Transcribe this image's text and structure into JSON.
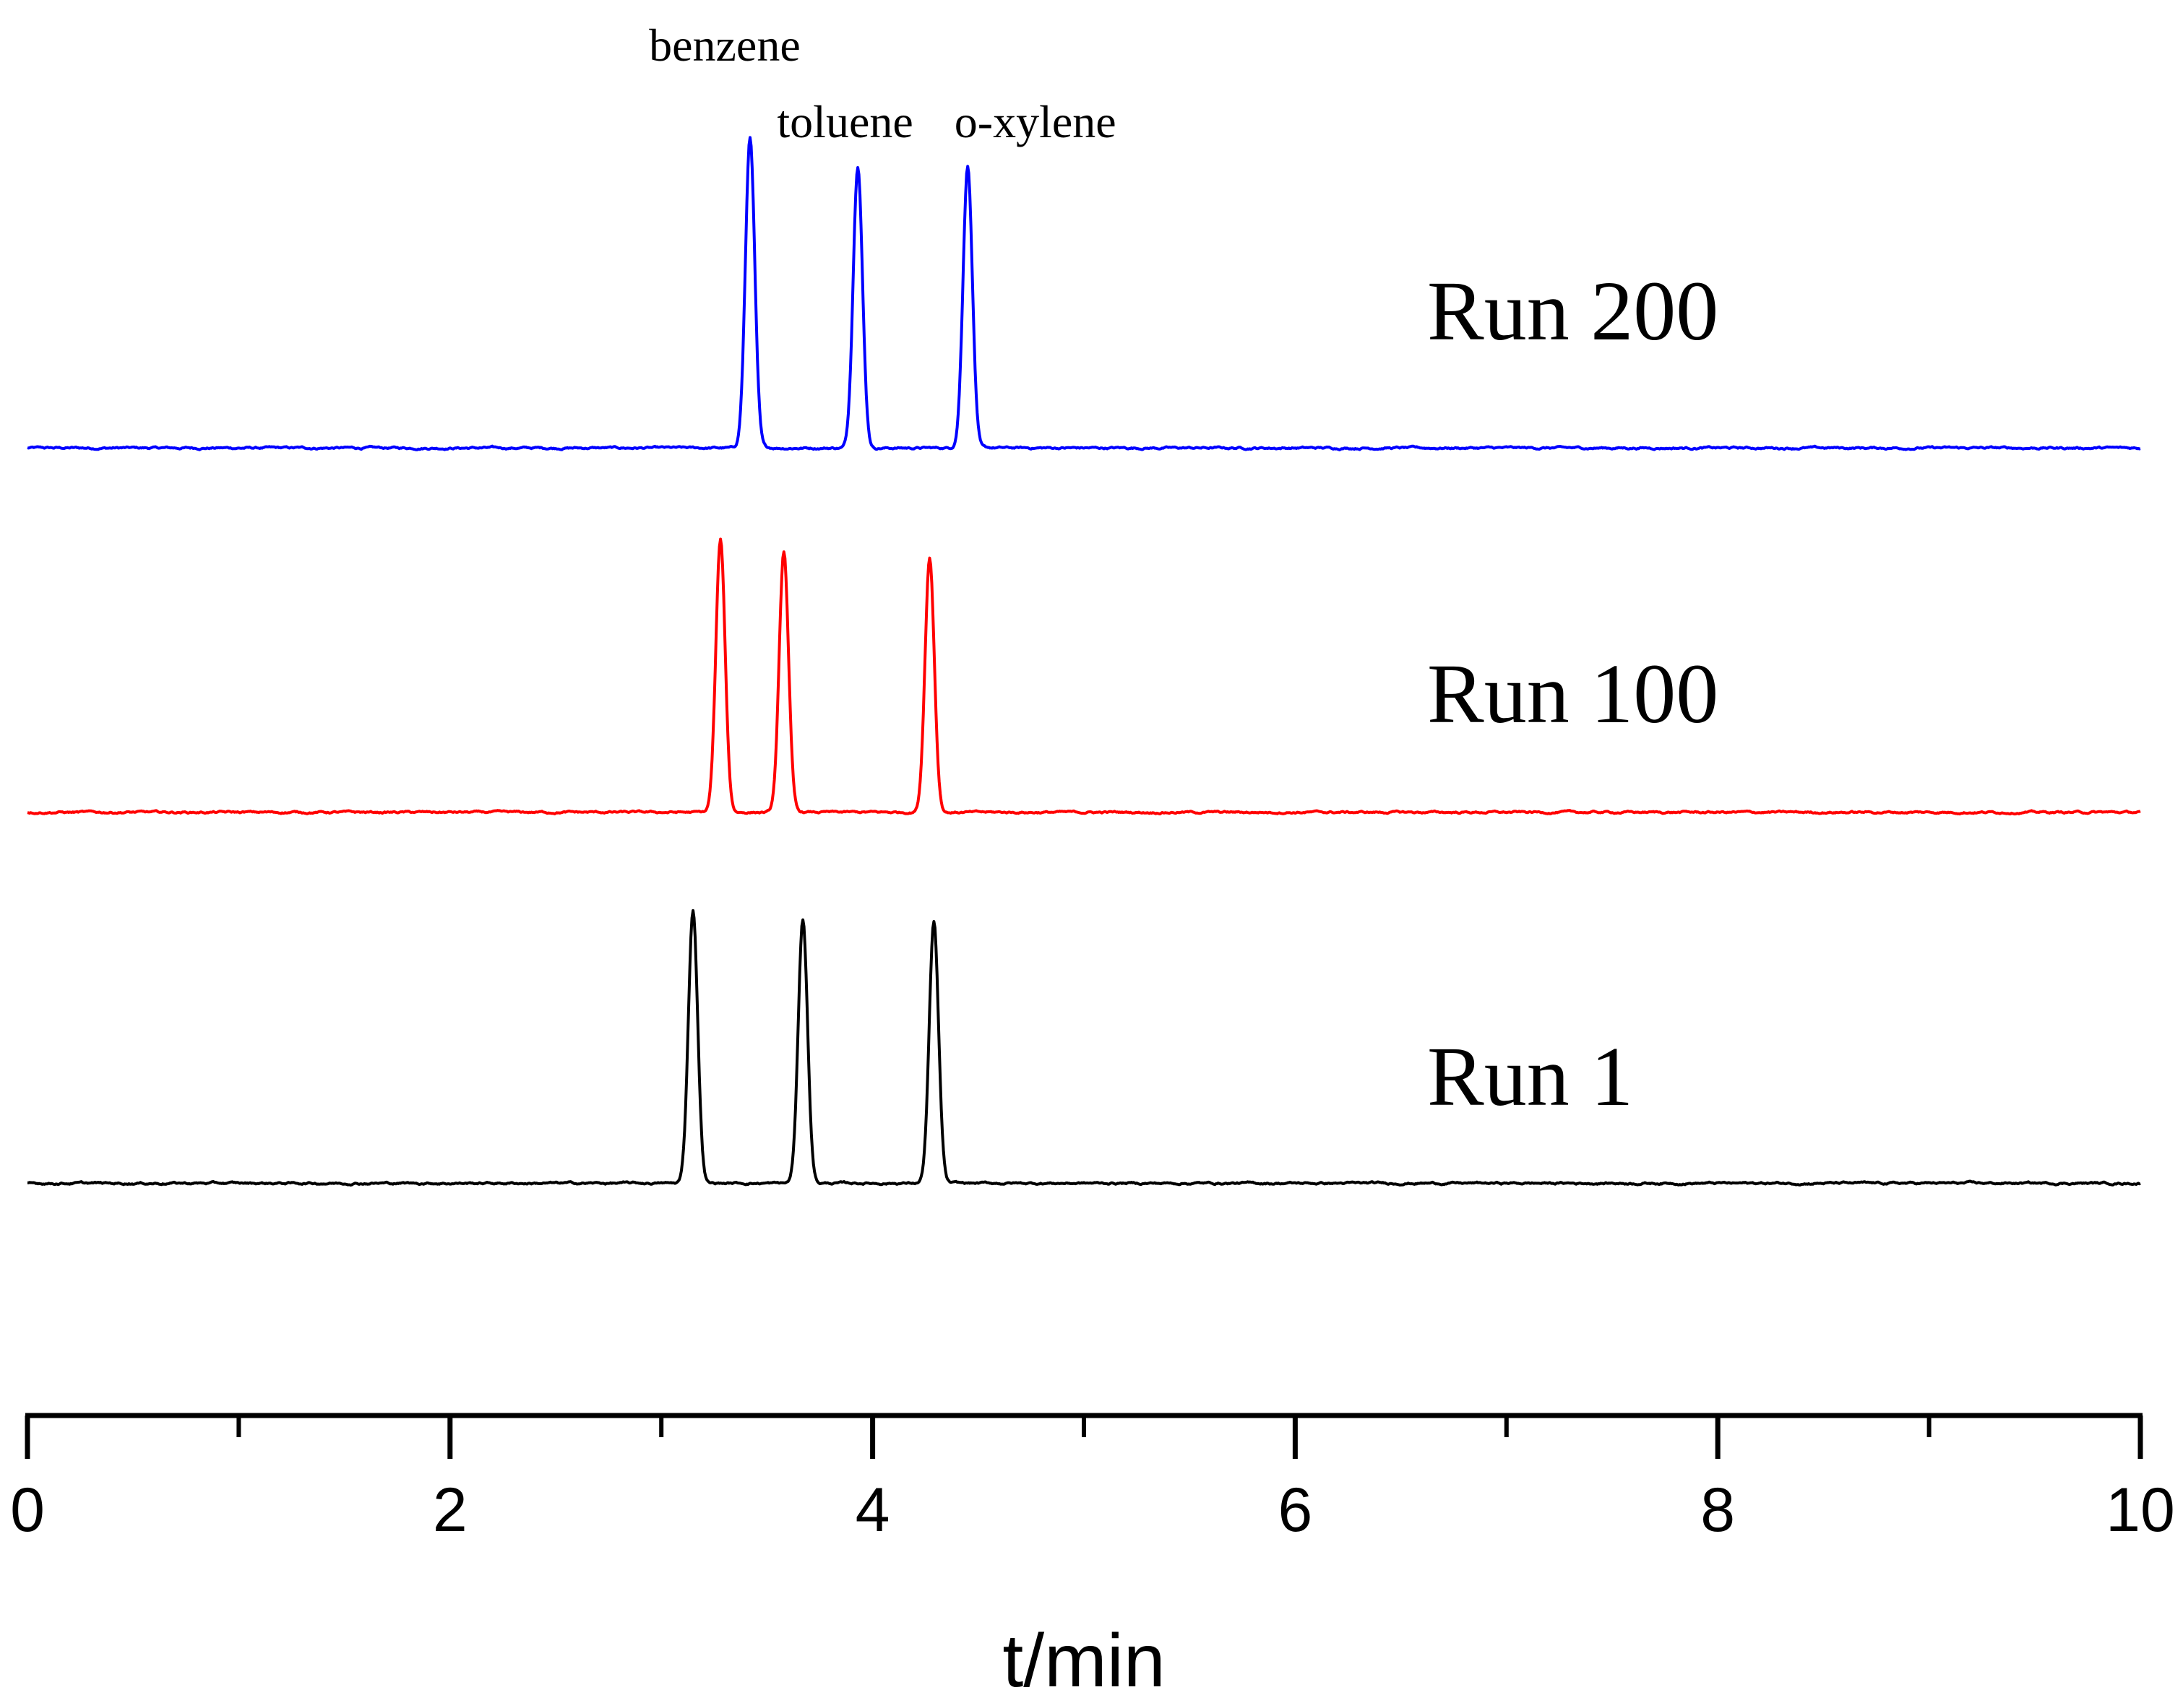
{
  "chart_data": {
    "type": "line",
    "xlabel": "t/min",
    "ylabel": "",
    "xlim": [
      0,
      10
    ],
    "x_ticks": [
      0,
      2,
      4,
      6,
      8,
      10
    ],
    "x_minor_ticks": [
      1,
      3,
      5,
      7,
      9
    ],
    "grid": false,
    "peak_labels": [
      {
        "text": "benzene",
        "x": 3.3
      },
      {
        "text": "toluene",
        "x": 3.87
      },
      {
        "text": "o-xylene",
        "x": 4.77
      }
    ],
    "series": [
      {
        "name": "Run 200",
        "color": "#0000ff",
        "baseline_level": 0.02,
        "peaks": [
          {
            "x": 3.42,
            "height": 1.0
          },
          {
            "x": 3.93,
            "height": 0.91
          },
          {
            "x": 4.45,
            "height": 0.91
          }
        ]
      },
      {
        "name": "Run 100",
        "color": "#ff0000",
        "baseline_level": 0.04,
        "peaks": [
          {
            "x": 3.28,
            "height": 0.92
          },
          {
            "x": 3.58,
            "height": 0.88
          },
          {
            "x": 4.27,
            "height": 0.86
          }
        ]
      },
      {
        "name": "Run 1",
        "color": "#000000",
        "baseline_level": 0.02,
        "peaks": [
          {
            "x": 3.15,
            "height": 0.9
          },
          {
            "x": 3.67,
            "height": 0.87
          },
          {
            "x": 4.29,
            "height": 0.86
          }
        ]
      }
    ]
  }
}
